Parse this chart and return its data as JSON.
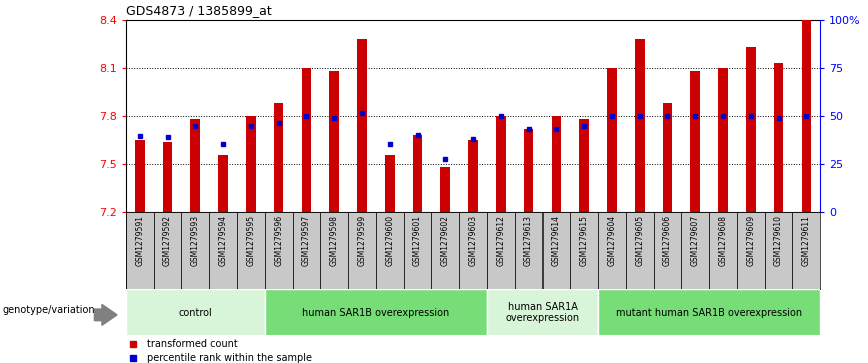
{
  "title": "GDS4873 / 1385899_at",
  "samples": [
    "GSM1279591",
    "GSM1279592",
    "GSM1279593",
    "GSM1279594",
    "GSM1279595",
    "GSM1279596",
    "GSM1279597",
    "GSM1279598",
    "GSM1279599",
    "GSM1279600",
    "GSM1279601",
    "GSM1279602",
    "GSM1279603",
    "GSM1279612",
    "GSM1279613",
    "GSM1279614",
    "GSM1279615",
    "GSM1279604",
    "GSM1279605",
    "GSM1279606",
    "GSM1279607",
    "GSM1279608",
    "GSM1279609",
    "GSM1279610",
    "GSM1279611"
  ],
  "bar_values": [
    7.65,
    7.64,
    7.78,
    7.56,
    7.8,
    7.88,
    8.1,
    8.08,
    8.28,
    7.56,
    7.68,
    7.48,
    7.65,
    7.8,
    7.72,
    7.8,
    7.78,
    8.1,
    8.28,
    7.88,
    8.08,
    8.1,
    8.23,
    8.13,
    8.4
  ],
  "blue_values": [
    7.675,
    7.67,
    7.74,
    7.625,
    7.74,
    7.76,
    7.8,
    7.79,
    7.82,
    7.625,
    7.68,
    7.53,
    7.66,
    7.8,
    7.72,
    7.72,
    7.74,
    7.8,
    7.8,
    7.8,
    7.8,
    7.8,
    7.8,
    7.79,
    7.8
  ],
  "ymin": 7.2,
  "ymax": 8.4,
  "yticks": [
    7.2,
    7.5,
    7.8,
    8.1,
    8.4
  ],
  "right_yticks": [
    0,
    25,
    50,
    75,
    100
  ],
  "right_ytick_labels": [
    "0",
    "25",
    "50",
    "75",
    "100%"
  ],
  "bar_color": "#cc0000",
  "blue_color": "#0000cc",
  "groups": [
    {
      "label": "control",
      "start": 0,
      "end": 5,
      "color": "#d9f5d9"
    },
    {
      "label": "human SAR1B overexpression",
      "start": 5,
      "end": 13,
      "color": "#77dd77"
    },
    {
      "label": "human SAR1A\noverexpression",
      "start": 13,
      "end": 17,
      "color": "#d9f5d9"
    },
    {
      "label": "mutant human SAR1B overexpression",
      "start": 17,
      "end": 25,
      "color": "#77dd77"
    }
  ],
  "genotype_label": "genotype/variation",
  "legend_red": "transformed count",
  "legend_blue": "percentile rank within the sample",
  "tick_bg": "#c8c8c8"
}
